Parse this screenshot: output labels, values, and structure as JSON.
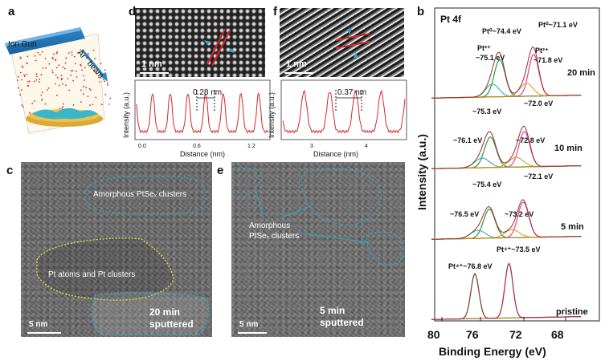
{
  "panels": {
    "a": {
      "label": "a",
      "ion_gun": "Ion Gun",
      "beam": "Ar⁺ beam"
    },
    "b": {
      "label": "b",
      "title": "Pt 4f",
      "xlabel": "Binding Energy (eV)",
      "ylabel": "Intensity (a.u.)",
      "xticks": [
        "80",
        "76",
        "72",
        "68"
      ],
      "spectra": [
        {
          "time": "20 min",
          "annotations": [
            "Pt⁰~74.4 eV",
            "Pt⁰~71.1 eV",
            "Pt²⁺",
            "~75.1 eV",
            "Pt²⁺",
            "~71.8 eV"
          ]
        },
        {
          "time": "10 min",
          "annotations": [
            "~75.3 eV",
            "~72.0 eV",
            "~76.1 eV",
            "~72.8 eV"
          ]
        },
        {
          "time": "5 min",
          "annotations": [
            "~75.4 eV",
            "~72.1 eV",
            "~76.5 eV",
            "~73.2 eV"
          ]
        },
        {
          "time": "pristine",
          "annotations": [
            "Pt⁴⁺~76.8 eV",
            "Pt⁴⁺~73.5 eV"
          ]
        }
      ]
    },
    "c": {
      "label": "c",
      "region1": "Amorphous PtSeₓ clusters",
      "region2": "Pt atoms and Pt clusters",
      "scale": "5 nm",
      "time_line1": "20 min",
      "time_line2": "sputtered"
    },
    "d": {
      "label": "d",
      "scale": "1 nm",
      "spacing": "0.28 nm",
      "ylabel": "Intensity (a.u.)",
      "xlabel": "Distance (nm)",
      "xticks": [
        "0.0",
        "0.6",
        "1.2"
      ]
    },
    "e": {
      "label": "e",
      "region_line1": "Amorphous",
      "region_line2": "PtSeₓ clusters",
      "scale": "5 nm",
      "time_line1": "5 min",
      "time_line2": "sputtered"
    },
    "f": {
      "label": "f",
      "scale": "1 nm",
      "spacing": "0.37 nm",
      "ylabel": "Intensity (a.u.)",
      "xlabel": "Distance (nm)",
      "xticks": [
        "3",
        "4"
      ]
    }
  },
  "colors": {
    "cyan": "#2aa7c9",
    "yellow": "#e2e23a",
    "red": "#d8262a",
    "teal": "#3bb7b0",
    "orange": "#e2a13a",
    "pink": "#e0409a",
    "green": "#2a9a3a",
    "magenta": "#c23ad8"
  }
}
